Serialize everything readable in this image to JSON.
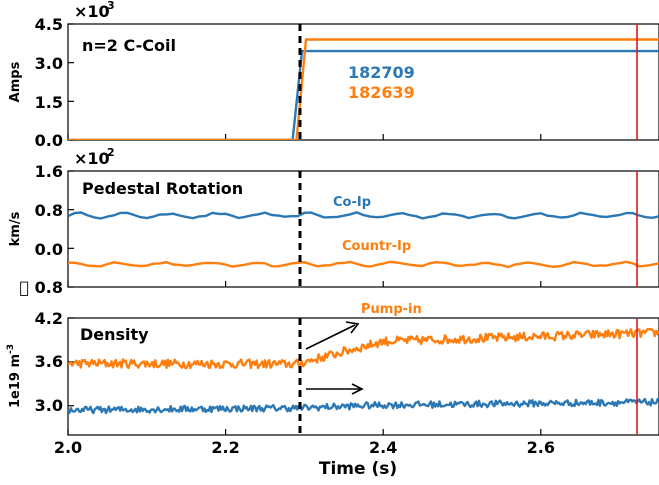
{
  "colors": {
    "blue": "#2c78b4",
    "orange": "#ff7f0e",
    "red": "#e0191e",
    "black": "#000000"
  },
  "chart_data": {
    "type": "line",
    "xlabel": "Time (s)",
    "xlim": [
      2.0,
      2.75
    ],
    "xticks": [
      2.0,
      2.2,
      2.4,
      2.6
    ],
    "xtick_labels": [
      "2.0",
      "2.2",
      "2.4",
      "2.6"
    ],
    "vlines": {
      "dashed_black_x": 2.29,
      "red_x": 2.72
    },
    "panels": [
      {
        "id": "coil",
        "title": "n=2 C-Coil",
        "ylabel": "Amps",
        "sci_base": "×10",
        "sci_exp": "3",
        "ylim": [
          0,
          4.5
        ],
        "yticks": [
          0.0,
          1.5,
          3.0,
          4.5
        ],
        "ytick_labels": [
          "0.0",
          "1.5",
          "3.0",
          "4.5"
        ],
        "series": [
          {
            "name": "182709",
            "color": "blue",
            "points": [
              [
                2.0,
                0.0
              ],
              [
                2.285,
                0.0
              ],
              [
                2.297,
                3.45
              ],
              [
                2.75,
                3.45
              ]
            ]
          },
          {
            "name": "182639",
            "color": "orange",
            "points": [
              [
                2.0,
                0.0
              ],
              [
                2.29,
                0.0
              ],
              [
                2.302,
                3.9
              ],
              [
                2.75,
                3.9
              ]
            ]
          }
        ]
      },
      {
        "id": "rotation",
        "title": "Pedestal Rotation",
        "ylabel": "km/s",
        "sci_base": "×10",
        "sci_exp": "2",
        "ylim": [
          -0.8,
          1.6
        ],
        "yticks": [
          -0.8,
          0.0,
          0.8,
          1.6
        ],
        "ytick_labels": [
          "\u0000 0.8",
          "0.0",
          "0.8",
          "1.6"
        ],
        "series": [
          {
            "name": "Co-Ip",
            "color": "blue",
            "base": 0.68,
            "amp": 0.045,
            "noise": 0.02,
            "n": 90
          },
          {
            "name": "Countr-Ip",
            "color": "orange",
            "base": -0.33,
            "amp": 0.04,
            "noise": 0.018,
            "n": 90
          }
        ]
      },
      {
        "id": "density",
        "title": "Density",
        "ylabel": "1e19 m",
        "ylabel_sup": "-3",
        "ylim": [
          2.6,
          4.2
        ],
        "yticks": [
          3.0,
          3.6,
          4.2
        ],
        "ytick_labels": [
          "3.0",
          "3.6",
          "4.2"
        ],
        "series": [
          {
            "name": "Pump-in",
            "color": "orange",
            "trend": [
              [
                2.0,
                3.58
              ],
              [
                2.29,
                3.57
              ],
              [
                2.4,
                3.88
              ],
              [
                2.75,
                4.0
              ]
            ],
            "noise": 0.06,
            "n": 420
          },
          {
            "name": "",
            "color": "blue",
            "trend": [
              [
                2.0,
                2.94
              ],
              [
                2.29,
                2.97
              ],
              [
                2.4,
                3.01
              ],
              [
                2.75,
                3.05
              ]
            ],
            "noise": 0.045,
            "n": 420
          }
        ]
      }
    ]
  }
}
